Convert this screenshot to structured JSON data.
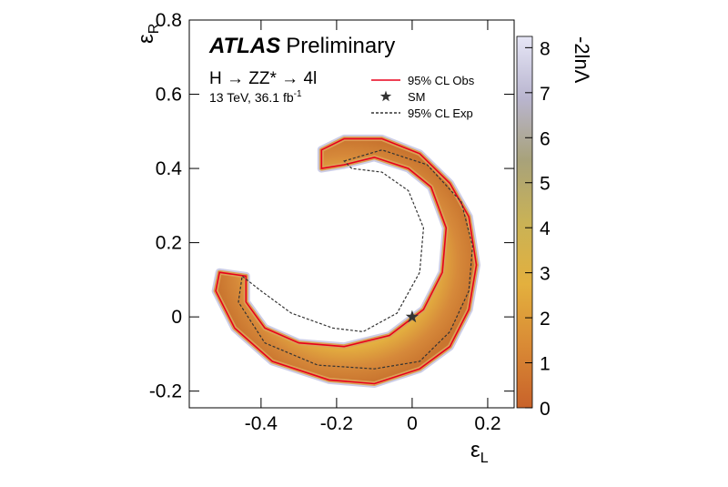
{
  "chart_data": {
    "type": "contour",
    "experiment": "ATLAS",
    "status": "Preliminary",
    "process": "H → ZZ* → 4l",
    "energy_lumi": "13 TeV, 36.1 fb",
    "lumi_exponent": "-1",
    "x_label": {
      "symbol": "ε",
      "sub": "L"
    },
    "y_label": {
      "symbol": "ε",
      "sub": "R"
    },
    "colorbar_label": "-2lnΛ",
    "xlim": [
      -0.59,
      0.27
    ],
    "xticks": [
      -0.4,
      -0.2,
      0,
      0.2
    ],
    "ylim": [
      -0.245,
      0.8
    ],
    "yticks": [
      -0.2,
      0,
      0.2,
      0.4,
      0.6,
      0.8
    ],
    "zlim": [
      0,
      8.25
    ],
    "zticks": [
      0,
      1,
      2,
      3,
      4,
      5,
      6,
      7,
      8
    ],
    "colormap": [
      "#c8622a",
      "#d98a35",
      "#e3b03e",
      "#c9b256",
      "#a8a27a",
      "#b9b5cf",
      "#e6e6f6"
    ],
    "series": [
      {
        "name": "95% CL Obs",
        "color": "#e8001c",
        "style": "solid",
        "x": [
          -0.24,
          -0.18,
          -0.08,
          0.02,
          0.1,
          0.15,
          0.17,
          0.15,
          0.1,
          0.02,
          -0.1,
          -0.22,
          -0.37,
          -0.47,
          -0.52,
          -0.51,
          -0.44,
          -0.44,
          -0.39,
          -0.3,
          -0.18,
          -0.06,
          0.03,
          0.08,
          0.09,
          0.05,
          -0.01,
          -0.1,
          -0.18,
          -0.24
        ],
        "y": [
          0.45,
          0.48,
          0.48,
          0.44,
          0.36,
          0.27,
          0.14,
          0.02,
          -0.08,
          -0.14,
          -0.18,
          -0.17,
          -0.12,
          -0.03,
          0.07,
          0.12,
          0.11,
          0.04,
          -0.03,
          -0.07,
          -0.08,
          -0.05,
          0.02,
          0.12,
          0.24,
          0.35,
          0.4,
          0.43,
          0.41,
          0.4
        ]
      },
      {
        "name": "SM",
        "color": "#333333",
        "style": "star",
        "x": [
          0
        ],
        "y": [
          0
        ]
      },
      {
        "name": "95% CL Exp",
        "color": "#333333",
        "style": "dashed",
        "x": [
          -0.18,
          -0.08,
          0.04,
          0.13,
          0.16,
          0.15,
          0.1,
          0.02,
          -0.1,
          -0.25,
          -0.39,
          -0.46,
          -0.45,
          -0.4,
          -0.32,
          -0.21,
          -0.13,
          -0.04,
          0.02,
          0.03,
          -0.01,
          -0.08,
          -0.16
        ],
        "y": [
          0.42,
          0.45,
          0.41,
          0.31,
          0.19,
          0.07,
          -0.04,
          -0.12,
          -0.14,
          -0.13,
          -0.07,
          0.04,
          0.11,
          0.07,
          0.01,
          -0.03,
          -0.04,
          0.01,
          0.12,
          0.24,
          0.34,
          0.39,
          0.4
        ]
      }
    ],
    "legend": "top-right"
  }
}
